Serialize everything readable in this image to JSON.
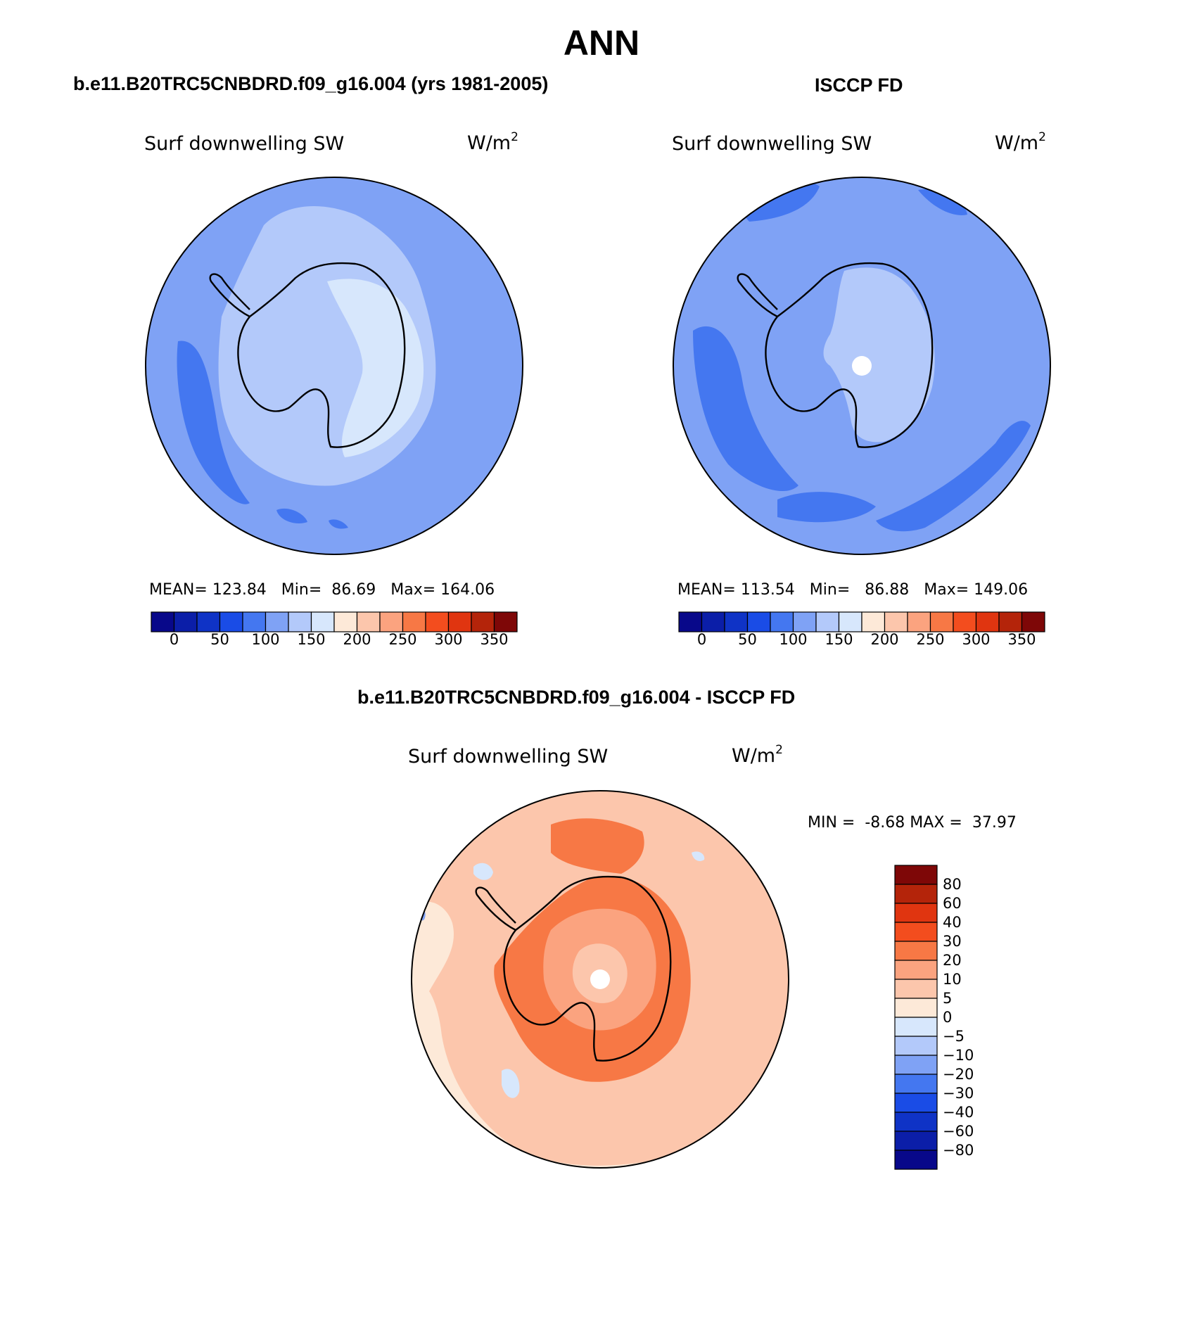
{
  "title": "ANN",
  "panels": [
    {
      "id": "model",
      "subtitle": "b.e11.B20TRC5CNBDRD.f09_g16.004 (yrs 1981-2005)",
      "variable": "Surf downwelling SW",
      "units_base": "W/m",
      "units_exp": "2",
      "stats": {
        "mean_label": "MEAN=",
        "mean": "123.84",
        "min_label": "Min=",
        "min": "86.69",
        "max_label": "Max=",
        "max": "164.06"
      }
    },
    {
      "id": "obs",
      "subtitle": "ISCCP FD",
      "variable": "Surf downwelling SW",
      "units_base": "W/m",
      "units_exp": "2",
      "stats": {
        "mean_label": "MEAN=",
        "mean": "113.54",
        "min_label": "Min=",
        "min": "86.88",
        "max_label": "Max=",
        "max": "149.06"
      }
    },
    {
      "id": "diff",
      "subtitle": "b.e11.B20TRC5CNBDRD.f09_g16.004 - ISCCP FD",
      "variable": "Surf downwelling SW",
      "units_base": "W/m",
      "units_exp": "2",
      "stats": {
        "min_label": "MIN =",
        "min": "-8.68",
        "max_label": "MAX =",
        "max": "37.97"
      }
    }
  ],
  "colorbar_abs": {
    "colors": [
      "#08088a",
      "#0b1ea8",
      "#0f33c6",
      "#1a4ce6",
      "#4477f0",
      "#7fa2f5",
      "#b3c9fa",
      "#d7e7fc",
      "#fde9d8",
      "#fcc6ac",
      "#fba37f",
      "#f77845",
      "#f34d1e",
      "#e03510",
      "#b4240a",
      "#7e0707"
    ],
    "labels": [
      "0",
      "50",
      "100",
      "150",
      "200",
      "250",
      "300",
      "350"
    ]
  },
  "colorbar_diff": {
    "colors": [
      "#7e0707",
      "#b4240a",
      "#e03510",
      "#f34d1e",
      "#f77845",
      "#fba37f",
      "#fcc6ac",
      "#fde9d8",
      "#d7e7fc",
      "#b3c9fa",
      "#7fa2f5",
      "#4477f0",
      "#1a4ce6",
      "#0f33c6",
      "#0b1ea8",
      "#08088a"
    ],
    "labels": [
      "80",
      "60",
      "40",
      "30",
      "20",
      "10",
      "5",
      "0",
      "−5",
      "−10",
      "−20",
      "−30",
      "−40",
      "−60",
      "−80"
    ]
  }
}
